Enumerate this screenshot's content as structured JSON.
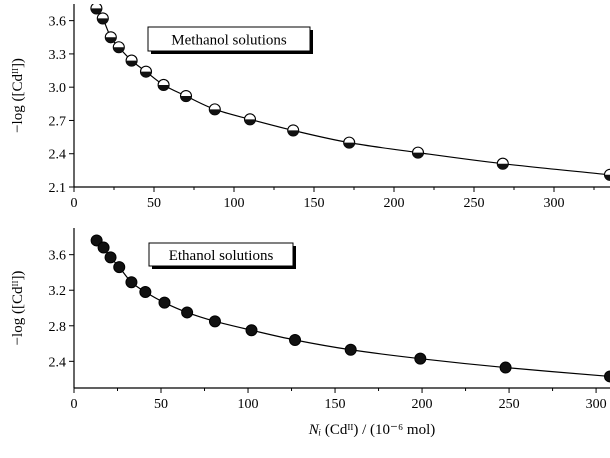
{
  "chart_data": [
    {
      "type": "scatter",
      "panel": "top",
      "legend": "Methanol solutions",
      "ylabel": "−log ([Cdᴵᴵ])",
      "xlim": [
        0,
        335
      ],
      "ylim": [
        2.1,
        3.75
      ],
      "xticks": [
        0,
        50,
        100,
        150,
        200,
        250,
        300
      ],
      "yticks": [
        2.1,
        2.4,
        2.7,
        3.0,
        3.3,
        3.6
      ],
      "ytick_labels": [
        "2.1",
        "2.4",
        "2.7",
        "3.0",
        "3.3",
        "3.6"
      ],
      "marker": "half-filled-circle",
      "fit_line": true,
      "points": [
        {
          "x": 14,
          "y": 3.71
        },
        {
          "x": 18,
          "y": 3.62
        },
        {
          "x": 23,
          "y": 3.45
        },
        {
          "x": 28,
          "y": 3.36
        },
        {
          "x": 36,
          "y": 3.24
        },
        {
          "x": 45,
          "y": 3.14
        },
        {
          "x": 56,
          "y": 3.02
        },
        {
          "x": 70,
          "y": 2.92
        },
        {
          "x": 88,
          "y": 2.8
        },
        {
          "x": 110,
          "y": 2.71
        },
        {
          "x": 137,
          "y": 2.61
        },
        {
          "x": 172,
          "y": 2.5
        },
        {
          "x": 215,
          "y": 2.41
        },
        {
          "x": 268,
          "y": 2.31
        },
        {
          "x": 335,
          "y": 2.21
        }
      ]
    },
    {
      "type": "scatter",
      "panel": "bottom",
      "legend": "Ethanol solutions",
      "ylabel": "−log ([Cdᴵᴵ])",
      "xlabel_italic": "Nᵢ",
      "xlabel_rest": " (Cdᴵᴵ) / (10⁻⁶ mol)",
      "xlim": [
        0,
        308
      ],
      "ylim": [
        2.1,
        3.9
      ],
      "xticks": [
        0,
        50,
        100,
        150,
        200,
        250,
        300
      ],
      "yticks": [
        2.4,
        2.8,
        3.2,
        3.6
      ],
      "ytick_labels": [
        "2.4",
        "2.8",
        "3.2",
        "3.6"
      ],
      "marker": "filled-circle",
      "fit_line": true,
      "points": [
        {
          "x": 13,
          "y": 3.76
        },
        {
          "x": 17,
          "y": 3.68
        },
        {
          "x": 21,
          "y": 3.57
        },
        {
          "x": 26,
          "y": 3.46
        },
        {
          "x": 33,
          "y": 3.29
        },
        {
          "x": 41,
          "y": 3.18
        },
        {
          "x": 52,
          "y": 3.06
        },
        {
          "x": 65,
          "y": 2.95
        },
        {
          "x": 81,
          "y": 2.85
        },
        {
          "x": 102,
          "y": 2.75
        },
        {
          "x": 127,
          "y": 2.64
        },
        {
          "x": 159,
          "y": 2.53
        },
        {
          "x": 199,
          "y": 2.43
        },
        {
          "x": 248,
          "y": 2.33
        },
        {
          "x": 308,
          "y": 2.23
        }
      ]
    }
  ]
}
